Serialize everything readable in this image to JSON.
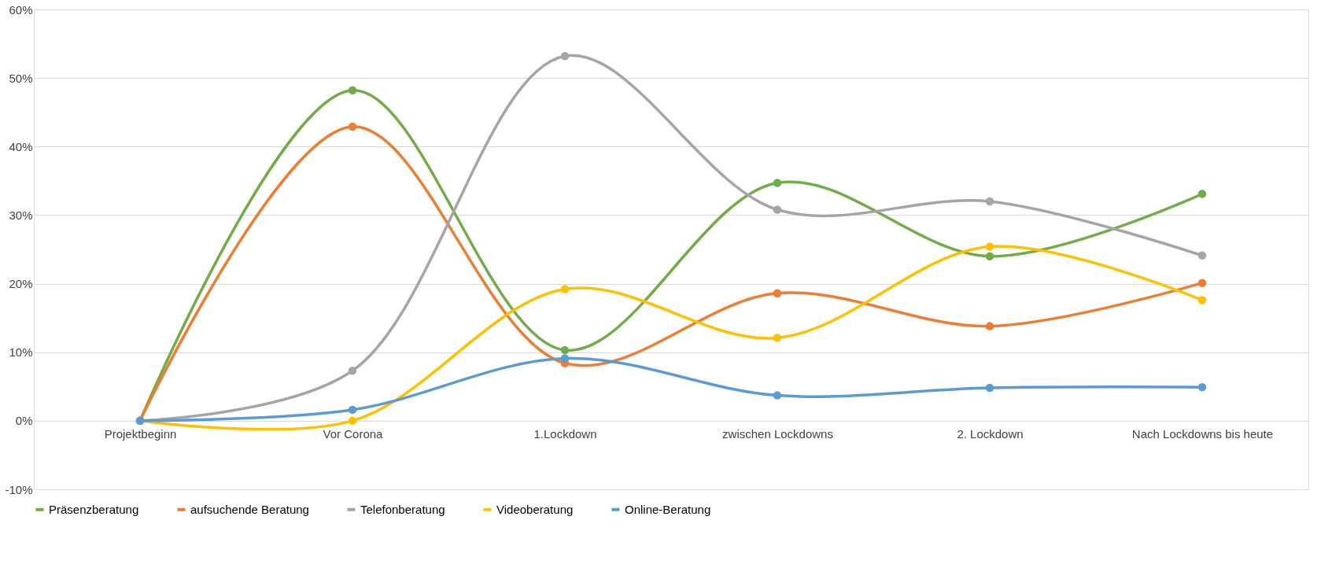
{
  "chart_data": {
    "type": "line",
    "categories": [
      "Projektbeginn",
      "Vor Corona",
      "1.Lockdown",
      "zwischen Lockdowns",
      "2. Lockdown",
      "Nach Lockdowns bis heute"
    ],
    "series": [
      {
        "name": "Präsenzberatung",
        "color": "#70ad47",
        "values": [
          0,
          48.2,
          10.3,
          34.7,
          24.0,
          33.1
        ]
      },
      {
        "name": "aufsuchende Beratung",
        "color": "#ed7d31",
        "values": [
          0,
          42.9,
          8.4,
          18.6,
          13.8,
          20.1
        ]
      },
      {
        "name": "Telefonberatung",
        "color": "#a5a5a5",
        "values": [
          0,
          7.3,
          53.2,
          30.8,
          32.0,
          24.1
        ]
      },
      {
        "name": "Videoberatung",
        "color": "#ffc000",
        "values": [
          0,
          0,
          19.2,
          12.1,
          25.4,
          17.6
        ]
      },
      {
        "name": "Online-Beratung",
        "color": "#5b9bd5",
        "values": [
          0,
          1.6,
          9.1,
          3.7,
          4.8,
          4.9
        ]
      }
    ],
    "ylim": [
      -10,
      60
    ],
    "yticks": [
      {
        "value": -10,
        "label": "-10%"
      },
      {
        "value": 0,
        "label": "0%"
      },
      {
        "value": 10,
        "label": "10%"
      },
      {
        "value": 20,
        "label": "20%"
      },
      {
        "value": 30,
        "label": "30%"
      },
      {
        "value": 40,
        "label": "40%"
      },
      {
        "value": 50,
        "label": "50%"
      },
      {
        "value": 60,
        "label": "60%"
      }
    ],
    "grid": "y",
    "legend": "bottom",
    "marker": "circle",
    "line_style": "solid"
  }
}
